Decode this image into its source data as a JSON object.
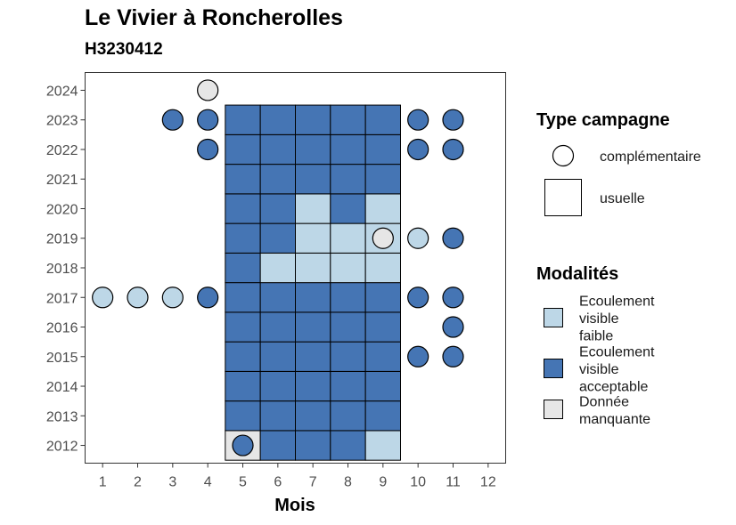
{
  "chart_data": {
    "type": "heatmap",
    "title": "Le Vivier à Roncherolles",
    "subtitle": "H3230412",
    "xlabel": "Mois",
    "ylabel": "",
    "x_ticks": [
      1,
      2,
      3,
      4,
      5,
      6,
      7,
      8,
      9,
      10,
      11,
      12
    ],
    "y_ticks": [
      2012,
      2013,
      2014,
      2015,
      2016,
      2017,
      2018,
      2019,
      2020,
      2021,
      2022,
      2023,
      2024
    ],
    "xlim": [
      0.5,
      12.5
    ],
    "ylim": [
      2011.4,
      2024.6
    ],
    "grid": false,
    "colors": {
      "faible": "#bdd7e7",
      "acceptable": "#4575b4",
      "manquante": "#e6e6e6"
    },
    "legend_type": {
      "title": "Type campagne",
      "items": [
        {
          "shape": "circle",
          "label": "complémentaire"
        },
        {
          "shape": "square",
          "label": "usuelle"
        }
      ]
    },
    "legend_modalites": {
      "title": "Modalités",
      "items": [
        {
          "key": "faible",
          "lines": [
            "Ecoulement",
            "visible",
            "faible"
          ]
        },
        {
          "key": "acceptable",
          "lines": [
            "Ecoulement",
            "visible",
            "acceptable"
          ]
        },
        {
          "key": "manquante",
          "lines": [
            "Donnée",
            "manquante"
          ]
        }
      ]
    },
    "usuelle": [
      {
        "year": 2012,
        "month": 5,
        "value": "manquante"
      },
      {
        "year": 2012,
        "month": 6,
        "value": "acceptable"
      },
      {
        "year": 2012,
        "month": 7,
        "value": "acceptable"
      },
      {
        "year": 2012,
        "month": 8,
        "value": "acceptable"
      },
      {
        "year": 2012,
        "month": 9,
        "value": "faible"
      },
      {
        "year": 2013,
        "month": 5,
        "value": "acceptable"
      },
      {
        "year": 2013,
        "month": 6,
        "value": "acceptable"
      },
      {
        "year": 2013,
        "month": 7,
        "value": "acceptable"
      },
      {
        "year": 2013,
        "month": 8,
        "value": "acceptable"
      },
      {
        "year": 2013,
        "month": 9,
        "value": "acceptable"
      },
      {
        "year": 2014,
        "month": 5,
        "value": "acceptable"
      },
      {
        "year": 2014,
        "month": 6,
        "value": "acceptable"
      },
      {
        "year": 2014,
        "month": 7,
        "value": "acceptable"
      },
      {
        "year": 2014,
        "month": 8,
        "value": "acceptable"
      },
      {
        "year": 2014,
        "month": 9,
        "value": "acceptable"
      },
      {
        "year": 2015,
        "month": 5,
        "value": "acceptable"
      },
      {
        "year": 2015,
        "month": 6,
        "value": "acceptable"
      },
      {
        "year": 2015,
        "month": 7,
        "value": "acceptable"
      },
      {
        "year": 2015,
        "month": 8,
        "value": "acceptable"
      },
      {
        "year": 2015,
        "month": 9,
        "value": "acceptable"
      },
      {
        "year": 2016,
        "month": 5,
        "value": "acceptable"
      },
      {
        "year": 2016,
        "month": 6,
        "value": "acceptable"
      },
      {
        "year": 2016,
        "month": 7,
        "value": "acceptable"
      },
      {
        "year": 2016,
        "month": 8,
        "value": "acceptable"
      },
      {
        "year": 2016,
        "month": 9,
        "value": "acceptable"
      },
      {
        "year": 2017,
        "month": 5,
        "value": "acceptable"
      },
      {
        "year": 2017,
        "month": 6,
        "value": "acceptable"
      },
      {
        "year": 2017,
        "month": 7,
        "value": "acceptable"
      },
      {
        "year": 2017,
        "month": 8,
        "value": "acceptable"
      },
      {
        "year": 2017,
        "month": 9,
        "value": "acceptable"
      },
      {
        "year": 2018,
        "month": 5,
        "value": "acceptable"
      },
      {
        "year": 2018,
        "month": 6,
        "value": "faible"
      },
      {
        "year": 2018,
        "month": 7,
        "value": "faible"
      },
      {
        "year": 2018,
        "month": 8,
        "value": "faible"
      },
      {
        "year": 2018,
        "month": 9,
        "value": "faible"
      },
      {
        "year": 2019,
        "month": 5,
        "value": "acceptable"
      },
      {
        "year": 2019,
        "month": 6,
        "value": "acceptable"
      },
      {
        "year": 2019,
        "month": 7,
        "value": "faible"
      },
      {
        "year": 2019,
        "month": 8,
        "value": "faible"
      },
      {
        "year": 2019,
        "month": 9,
        "value": "faible"
      },
      {
        "year": 2020,
        "month": 5,
        "value": "acceptable"
      },
      {
        "year": 2020,
        "month": 6,
        "value": "acceptable"
      },
      {
        "year": 2020,
        "month": 7,
        "value": "faible"
      },
      {
        "year": 2020,
        "month": 8,
        "value": "acceptable"
      },
      {
        "year": 2020,
        "month": 9,
        "value": "faible"
      },
      {
        "year": 2021,
        "month": 5,
        "value": "acceptable"
      },
      {
        "year": 2021,
        "month": 6,
        "value": "acceptable"
      },
      {
        "year": 2021,
        "month": 7,
        "value": "acceptable"
      },
      {
        "year": 2021,
        "month": 8,
        "value": "acceptable"
      },
      {
        "year": 2021,
        "month": 9,
        "value": "acceptable"
      },
      {
        "year": 2022,
        "month": 5,
        "value": "acceptable"
      },
      {
        "year": 2022,
        "month": 6,
        "value": "acceptable"
      },
      {
        "year": 2022,
        "month": 7,
        "value": "acceptable"
      },
      {
        "year": 2022,
        "month": 8,
        "value": "acceptable"
      },
      {
        "year": 2022,
        "month": 9,
        "value": "acceptable"
      },
      {
        "year": 2023,
        "month": 5,
        "value": "acceptable"
      },
      {
        "year": 2023,
        "month": 6,
        "value": "acceptable"
      },
      {
        "year": 2023,
        "month": 7,
        "value": "acceptable"
      },
      {
        "year": 2023,
        "month": 8,
        "value": "acceptable"
      },
      {
        "year": 2023,
        "month": 9,
        "value": "acceptable"
      }
    ],
    "complementaire": [
      {
        "year": 2012,
        "month": 5,
        "value": "acceptable"
      },
      {
        "year": 2015,
        "month": 10,
        "value": "acceptable"
      },
      {
        "year": 2015,
        "month": 11,
        "value": "acceptable"
      },
      {
        "year": 2016,
        "month": 11,
        "value": "acceptable"
      },
      {
        "year": 2017,
        "month": 1,
        "value": "faible"
      },
      {
        "year": 2017,
        "month": 2,
        "value": "faible"
      },
      {
        "year": 2017,
        "month": 3,
        "value": "faible"
      },
      {
        "year": 2017,
        "month": 4,
        "value": "acceptable"
      },
      {
        "year": 2017,
        "month": 10,
        "value": "acceptable"
      },
      {
        "year": 2017,
        "month": 11,
        "value": "acceptable"
      },
      {
        "year": 2019,
        "month": 9,
        "value": "manquante"
      },
      {
        "year": 2019,
        "month": 10,
        "value": "faible"
      },
      {
        "year": 2019,
        "month": 11,
        "value": "acceptable"
      },
      {
        "year": 2022,
        "month": 4,
        "value": "acceptable"
      },
      {
        "year": 2022,
        "month": 10,
        "value": "acceptable"
      },
      {
        "year": 2022,
        "month": 11,
        "value": "acceptable"
      },
      {
        "year": 2023,
        "month": 3,
        "value": "acceptable"
      },
      {
        "year": 2023,
        "month": 4,
        "value": "acceptable"
      },
      {
        "year": 2023,
        "month": 10,
        "value": "acceptable"
      },
      {
        "year": 2023,
        "month": 11,
        "value": "acceptable"
      },
      {
        "year": 2024,
        "month": 4,
        "value": "manquante"
      }
    ]
  }
}
